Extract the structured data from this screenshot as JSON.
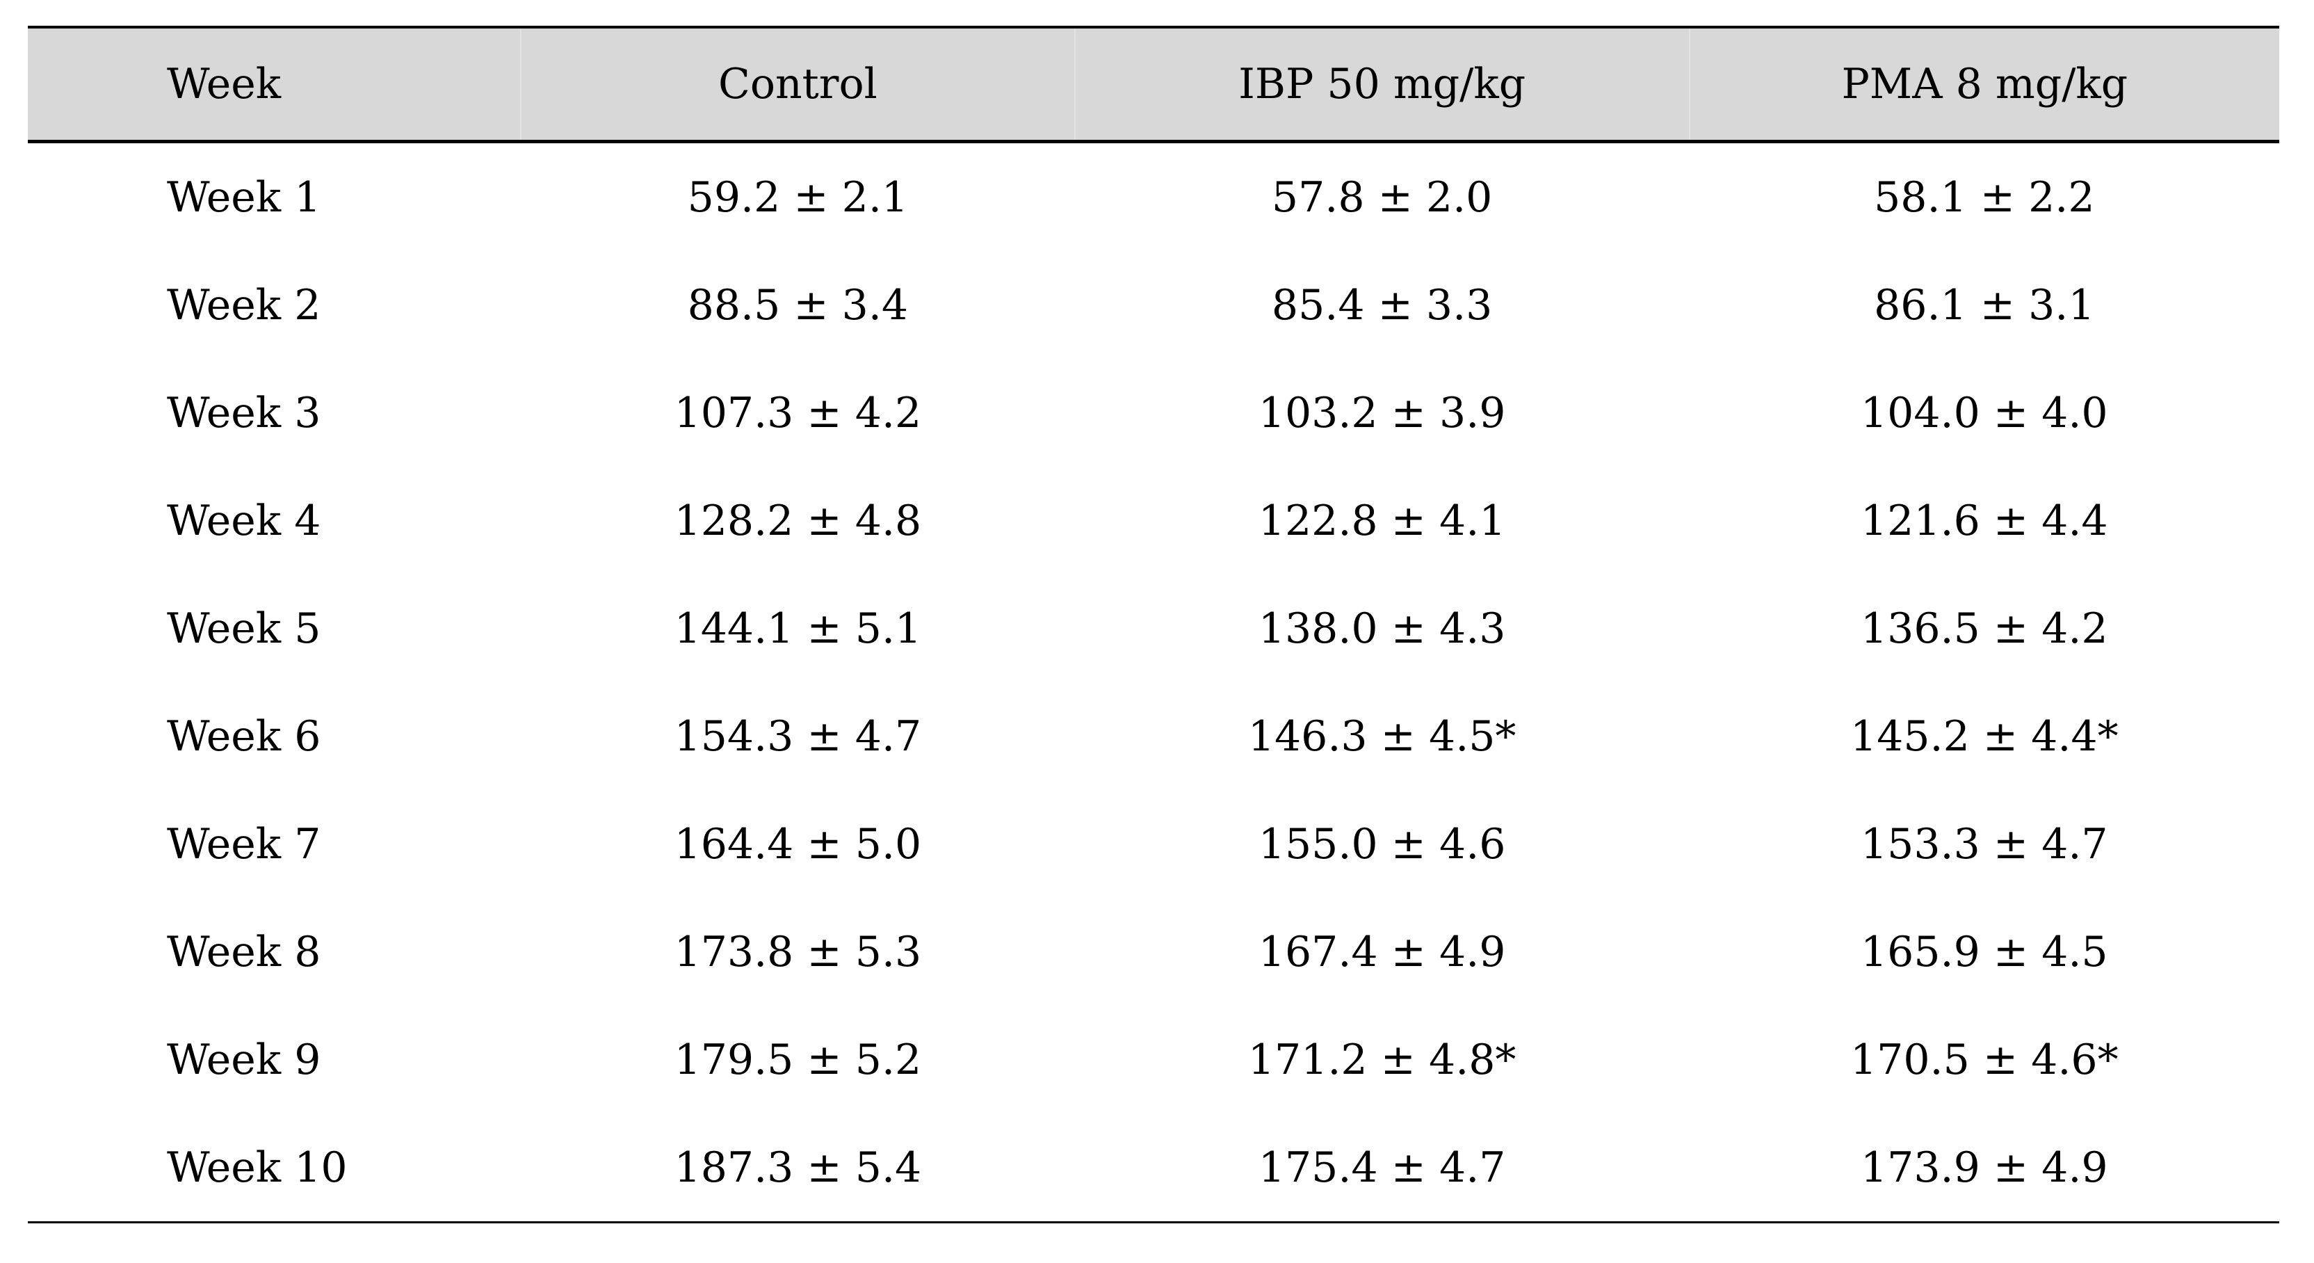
{
  "colors": {
    "header_bg": "#d8d8d8",
    "rule": "#000000",
    "text": "#000000",
    "page_bg": "#ffffff"
  },
  "chart_data": {
    "type": "table",
    "columns": [
      "Week",
      "Control",
      "IBP 50 mg/kg",
      "PMA 8 mg/kg"
    ],
    "rows": [
      [
        "Week 1",
        "59.2 ± 2.1",
        "57.8 ± 2.0",
        "58.1 ± 2.2"
      ],
      [
        "Week 2",
        "88.5 ± 3.4",
        "85.4 ± 3.3",
        "86.1 ± 3.1"
      ],
      [
        "Week 3",
        "107.3 ± 4.2",
        "103.2 ± 3.9",
        "104.0 ± 4.0"
      ],
      [
        "Week 4",
        "128.2 ± 4.8",
        "122.8 ± 4.1",
        "121.6 ± 4.4"
      ],
      [
        "Week 5",
        "144.1 ± 5.1",
        "138.0 ± 4.3",
        "136.5 ± 4.2"
      ],
      [
        "Week 6",
        "154.3 ± 4.7",
        "146.3 ± 4.5*",
        "145.2 ± 4.4*"
      ],
      [
        "Week 7",
        "164.4 ± 5.0",
        "155.0 ± 4.6",
        "153.3 ± 4.7"
      ],
      [
        "Week 8",
        "173.8 ± 5.3",
        "167.4 ± 4.9",
        "165.9 ± 4.5"
      ],
      [
        "Week 9",
        "179.5 ± 5.2",
        "171.2 ± 4.8*",
        "170.5 ± 4.6*"
      ],
      [
        "Week 10",
        "187.3 ± 5.4",
        "175.4 ± 4.7",
        "173.9 ± 4.9"
      ]
    ]
  }
}
